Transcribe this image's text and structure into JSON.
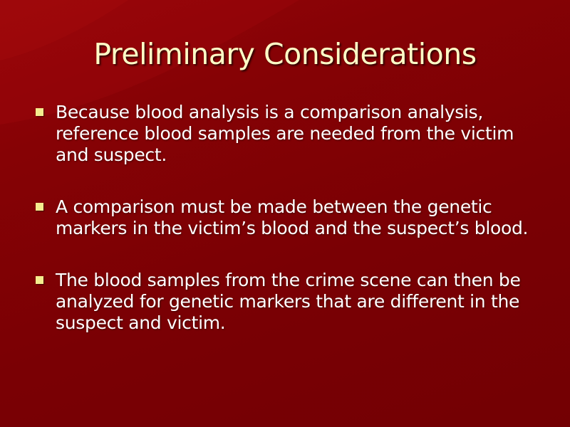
{
  "slide": {
    "title": "Preliminary Considerations",
    "bullets": [
      {
        "text": "Because blood analysis is a comparison analysis, reference blood samples are needed from the victim and suspect."
      },
      {
        "text": "A comparison must be made between the genetic markers in the victim’s blood and the suspect’s blood."
      },
      {
        "text": "The blood samples from the crime scene can then be analyzed for genetic markers that are different in the suspect and victim."
      }
    ]
  },
  "colors": {
    "background": "#7a0004",
    "title": "#fdfcc6",
    "bullet_marker": "#f4ec8e",
    "body_text": "#ffffff"
  }
}
